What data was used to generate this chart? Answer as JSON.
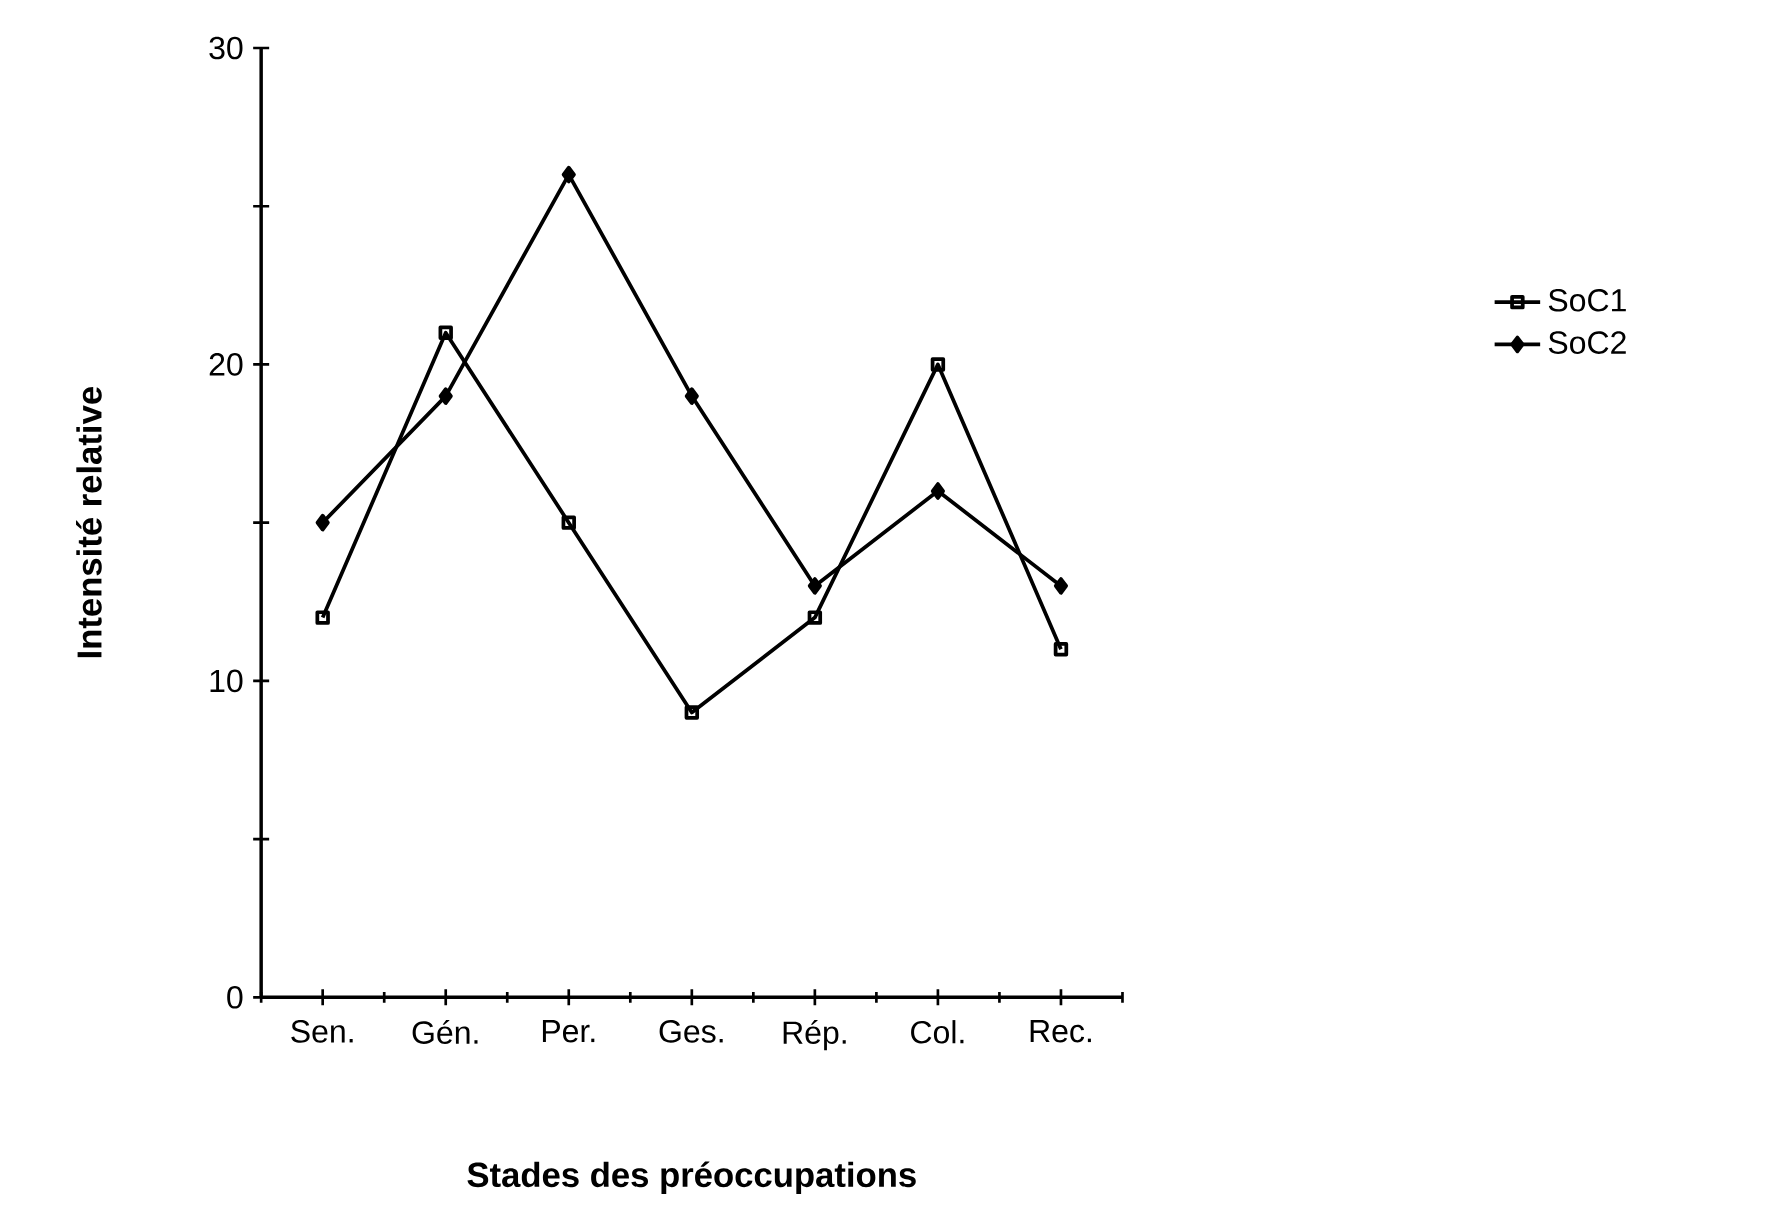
{
  "chart_data": {
    "type": "line",
    "xlabel": "Stades des préoccupations",
    "ylabel": "Intensité relative",
    "categories": [
      "Sen.",
      "Gén.",
      "Per.",
      "Ges.",
      "Rép.",
      "Col.",
      "Rec."
    ],
    "series": [
      {
        "name": "SoC1",
        "color": "#000000",
        "marker": "square",
        "values": [
          12,
          21,
          15,
          9,
          12,
          20,
          11
        ]
      },
      {
        "name": "SoC2",
        "color": "#000000",
        "marker": "diamond",
        "values": [
          15,
          19,
          26,
          19,
          13,
          16,
          13
        ]
      }
    ],
    "ylim": [
      0,
      30
    ],
    "yticks": [
      0,
      {
        "value": 5,
        "label": null
      },
      10,
      {
        "value": 15,
        "label": null
      },
      20,
      {
        "value": 25,
        "label": null
      },
      30
    ],
    "legend": "right"
  }
}
